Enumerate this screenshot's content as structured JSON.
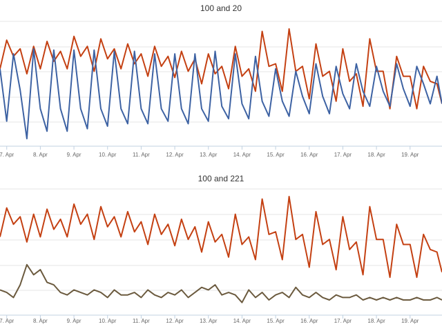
{
  "chart_data": [
    {
      "type": "line",
      "title": "100 and 20",
      "x_tick_labels": [
        "7. Apr",
        "8. Apr",
        "9. Apr",
        "10. Apr",
        "11. Apr",
        "12. Apr",
        "13. Apr",
        "14. Apr",
        "15. Apr",
        "16. Apr",
        "17. Apr",
        "18. Apr",
        "19. Apr"
      ],
      "x_range_days": [
        6.8,
        19.95
      ],
      "y_range": [
        0,
        1
      ],
      "grid": "horizontal",
      "colors": [
        "#c44012",
        "#3d62a3"
      ],
      "series": [
        {
          "color": "#c44012",
          "x": [
            6.8,
            7.0,
            7.2,
            7.4,
            7.6,
            7.8,
            8.0,
            8.2,
            8.4,
            8.6,
            8.8,
            9.0,
            9.2,
            9.4,
            9.6,
            9.8,
            10.0,
            10.2,
            10.4,
            10.6,
            10.8,
            11.0,
            11.2,
            11.4,
            11.6,
            11.8,
            12.0,
            12.2,
            12.4,
            12.6,
            12.8,
            13.0,
            13.2,
            13.4,
            13.6,
            13.8,
            14.0,
            14.2,
            14.4,
            14.6,
            14.8,
            15.0,
            15.2,
            15.4,
            15.6,
            15.8,
            16.0,
            16.2,
            16.4,
            16.6,
            16.8,
            17.0,
            17.2,
            17.4,
            17.6,
            17.8,
            18.0,
            18.2,
            18.4,
            18.6,
            18.8,
            19.0,
            19.2,
            19.4,
            19.6,
            19.8,
            19.95
          ],
          "y": [
            0.62,
            0.85,
            0.72,
            0.78,
            0.58,
            0.8,
            0.62,
            0.84,
            0.68,
            0.76,
            0.62,
            0.88,
            0.72,
            0.8,
            0.6,
            0.86,
            0.7,
            0.78,
            0.62,
            0.82,
            0.66,
            0.74,
            0.56,
            0.8,
            0.64,
            0.72,
            0.55,
            0.76,
            0.6,
            0.7,
            0.5,
            0.74,
            0.58,
            0.64,
            0.46,
            0.8,
            0.56,
            0.62,
            0.44,
            0.92,
            0.64,
            0.66,
            0.44,
            0.94,
            0.6,
            0.64,
            0.38,
            0.82,
            0.56,
            0.6,
            0.36,
            0.78,
            0.52,
            0.58,
            0.32,
            0.86,
            0.6,
            0.6,
            0.3,
            0.72,
            0.56,
            0.56,
            0.3,
            0.64,
            0.52,
            0.5,
            0.34
          ]
        },
        {
          "color": "#3d62a3",
          "x": [
            6.8,
            7.0,
            7.2,
            7.4,
            7.6,
            7.8,
            8.0,
            8.2,
            8.4,
            8.6,
            8.8,
            9.0,
            9.2,
            9.4,
            9.6,
            9.8,
            10.0,
            10.2,
            10.4,
            10.6,
            10.8,
            11.0,
            11.2,
            11.4,
            11.6,
            11.8,
            12.0,
            12.2,
            12.4,
            12.6,
            12.8,
            13.0,
            13.2,
            13.4,
            13.6,
            13.8,
            14.0,
            14.2,
            14.4,
            14.6,
            14.8,
            15.0,
            15.2,
            15.4,
            15.6,
            15.8,
            16.0,
            16.2,
            16.4,
            16.6,
            16.8,
            17.0,
            17.2,
            17.4,
            17.6,
            17.8,
            18.0,
            18.2,
            18.4,
            18.6,
            18.8,
            19.0,
            19.2,
            19.4,
            19.6,
            19.8,
            19.95
          ],
          "y": [
            0.62,
            0.2,
            0.74,
            0.45,
            0.06,
            0.78,
            0.3,
            0.12,
            0.77,
            0.3,
            0.12,
            0.77,
            0.3,
            0.14,
            0.77,
            0.3,
            0.16,
            0.76,
            0.3,
            0.18,
            0.76,
            0.3,
            0.18,
            0.74,
            0.3,
            0.2,
            0.74,
            0.3,
            0.18,
            0.74,
            0.3,
            0.2,
            0.76,
            0.32,
            0.22,
            0.74,
            0.34,
            0.22,
            0.72,
            0.36,
            0.24,
            0.62,
            0.36,
            0.24,
            0.6,
            0.4,
            0.26,
            0.66,
            0.4,
            0.26,
            0.64,
            0.42,
            0.3,
            0.66,
            0.44,
            0.32,
            0.64,
            0.44,
            0.32,
            0.66,
            0.46,
            0.32,
            0.64,
            0.5,
            0.34,
            0.56,
            0.34
          ]
        }
      ]
    },
    {
      "type": "line",
      "title": "100 and 221",
      "x_tick_labels": [
        "7. Apr",
        "8. Apr",
        "9. Apr",
        "10. Apr",
        "11. Apr",
        "12. Apr",
        "13. Apr",
        "14. Apr",
        "15. Apr",
        "16. Apr",
        "17. Apr",
        "18. Apr",
        "19. Apr"
      ],
      "x_range_days": [
        6.8,
        19.95
      ],
      "y_range": [
        0,
        1
      ],
      "grid": "horizontal",
      "colors": [
        "#c44012",
        "#6b5a3e"
      ],
      "series": [
        {
          "color": "#c44012",
          "x": [
            6.8,
            7.0,
            7.2,
            7.4,
            7.6,
            7.8,
            8.0,
            8.2,
            8.4,
            8.6,
            8.8,
            9.0,
            9.2,
            9.4,
            9.6,
            9.8,
            10.0,
            10.2,
            10.4,
            10.6,
            10.8,
            11.0,
            11.2,
            11.4,
            11.6,
            11.8,
            12.0,
            12.2,
            12.4,
            12.6,
            12.8,
            13.0,
            13.2,
            13.4,
            13.6,
            13.8,
            14.0,
            14.2,
            14.4,
            14.6,
            14.8,
            15.0,
            15.2,
            15.4,
            15.6,
            15.8,
            16.0,
            16.2,
            16.4,
            16.6,
            16.8,
            17.0,
            17.2,
            17.4,
            17.6,
            17.8,
            18.0,
            18.2,
            18.4,
            18.6,
            18.8,
            19.0,
            19.2,
            19.4,
            19.6,
            19.8,
            19.95
          ],
          "y": [
            0.62,
            0.85,
            0.72,
            0.78,
            0.58,
            0.8,
            0.62,
            0.84,
            0.68,
            0.76,
            0.62,
            0.88,
            0.72,
            0.8,
            0.6,
            0.86,
            0.7,
            0.78,
            0.62,
            0.82,
            0.66,
            0.74,
            0.56,
            0.8,
            0.64,
            0.72,
            0.55,
            0.76,
            0.6,
            0.7,
            0.5,
            0.74,
            0.58,
            0.64,
            0.46,
            0.8,
            0.56,
            0.62,
            0.44,
            0.92,
            0.64,
            0.66,
            0.44,
            0.94,
            0.6,
            0.64,
            0.38,
            0.82,
            0.56,
            0.6,
            0.36,
            0.78,
            0.52,
            0.58,
            0.32,
            0.86,
            0.6,
            0.6,
            0.3,
            0.72,
            0.56,
            0.56,
            0.3,
            0.64,
            0.52,
            0.5,
            0.34
          ]
        },
        {
          "color": "#6b5a3e",
          "x": [
            6.8,
            7.0,
            7.2,
            7.4,
            7.6,
            7.8,
            8.0,
            8.2,
            8.4,
            8.6,
            8.8,
            9.0,
            9.2,
            9.4,
            9.6,
            9.8,
            10.0,
            10.2,
            10.4,
            10.6,
            10.8,
            11.0,
            11.2,
            11.4,
            11.6,
            11.8,
            12.0,
            12.2,
            12.4,
            12.6,
            12.8,
            13.0,
            13.2,
            13.4,
            13.6,
            13.8,
            14.0,
            14.2,
            14.4,
            14.6,
            14.8,
            15.0,
            15.2,
            15.4,
            15.6,
            15.8,
            16.0,
            16.2,
            16.4,
            16.6,
            16.8,
            17.0,
            17.2,
            17.4,
            17.6,
            17.8,
            18.0,
            18.2,
            18.4,
            18.6,
            18.8,
            19.0,
            19.2,
            19.4,
            19.6,
            19.8,
            19.95
          ],
          "y": [
            0.2,
            0.18,
            0.14,
            0.24,
            0.4,
            0.32,
            0.36,
            0.26,
            0.24,
            0.18,
            0.16,
            0.2,
            0.18,
            0.16,
            0.2,
            0.18,
            0.14,
            0.2,
            0.16,
            0.16,
            0.18,
            0.14,
            0.2,
            0.16,
            0.14,
            0.18,
            0.16,
            0.2,
            0.14,
            0.18,
            0.22,
            0.2,
            0.24,
            0.16,
            0.18,
            0.16,
            0.1,
            0.2,
            0.14,
            0.18,
            0.12,
            0.16,
            0.18,
            0.14,
            0.22,
            0.16,
            0.14,
            0.18,
            0.14,
            0.12,
            0.16,
            0.14,
            0.14,
            0.16,
            0.12,
            0.14,
            0.12,
            0.14,
            0.12,
            0.14,
            0.12,
            0.12,
            0.14,
            0.12,
            0.12,
            0.14,
            0.12
          ]
        }
      ]
    }
  ]
}
